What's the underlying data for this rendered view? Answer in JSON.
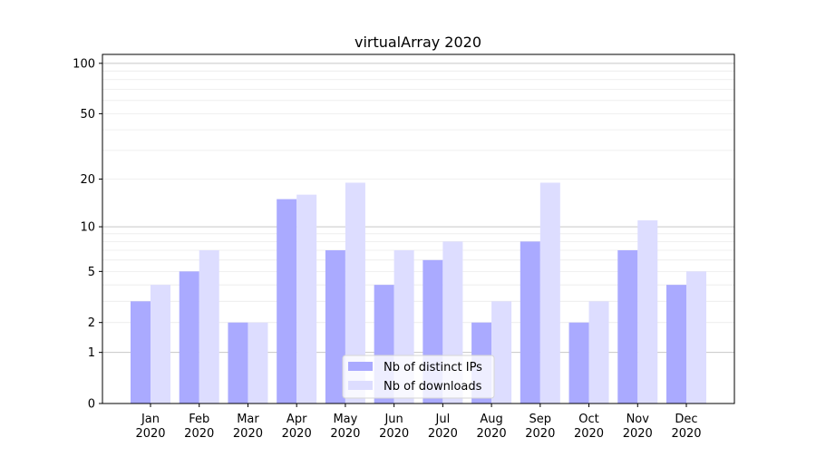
{
  "chart_data": {
    "type": "bar",
    "title": "virtualArray 2020",
    "xlabel": "",
    "ylabel": "",
    "yscale": "log(1+y)",
    "ylim": [
      0,
      113
    ],
    "yticks": [
      0,
      1,
      2,
      5,
      10,
      20,
      50,
      100
    ],
    "grid": true,
    "legend_placement": "lower-center",
    "categories": [
      "Jan\n2020",
      "Feb\n2020",
      "Mar\n2020",
      "Apr\n2020",
      "May\n2020",
      "Jun\n2020",
      "Jul\n2020",
      "Aug\n2020",
      "Sep\n2020",
      "Oct\n2020",
      "Nov\n2020",
      "Dec\n2020"
    ],
    "series": [
      {
        "name": "Nb of distinct IPs",
        "color": "#aaaaff",
        "values": [
          3,
          5,
          2,
          15,
          7,
          4,
          6,
          2,
          8,
          2,
          7,
          4
        ]
      },
      {
        "name": "Nb of downloads",
        "color": "#ddddff",
        "values": [
          4,
          7,
          2,
          16,
          19,
          7,
          8,
          3,
          19,
          3,
          11,
          5
        ]
      }
    ]
  }
}
